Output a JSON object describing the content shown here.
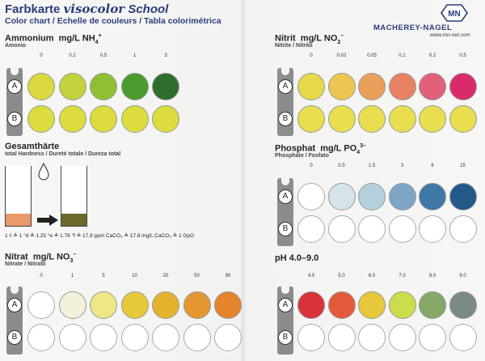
{
  "header": {
    "title_prefix": "Farbkarte",
    "title_brand": "visocolor",
    "title_suffix": "School",
    "subtitle": "Color chart / Echelle de couleurs / Tabla colorimétrica"
  },
  "logo": {
    "mark": "MN",
    "name": "MACHEREY-NAGEL",
    "url": "www.mn-net.com"
  },
  "slot_labels": {
    "a": "A",
    "b": "B"
  },
  "ammonium": {
    "title": "Ammonium",
    "unit": "mg/L NH",
    "unit_sub": "4",
    "unit_sup": "+",
    "subtitle": "Amonio",
    "values": [
      "0",
      "0.2",
      "0.5",
      "1",
      "3"
    ],
    "colors": [
      "#d9d83e",
      "#c2d23c",
      "#8fbf33",
      "#4a9b2e",
      "#2f6d2c"
    ],
    "ref_color": "#dcdc3e"
  },
  "nitrit": {
    "title": "Nitrit",
    "unit": "mg/L NO",
    "unit_sub": "2",
    "unit_sup": "–",
    "subtitle": "Nitrite / Nitrito",
    "values": [
      "0",
      "0.02",
      "0.05",
      "0.1",
      "0.2",
      "0.5"
    ],
    "colors": [
      "#e5d84a",
      "#ecc650",
      "#eaa05a",
      "#e88262",
      "#e2607a",
      "#d92a6c"
    ],
    "ref_color": "#e8de50"
  },
  "hardness": {
    "title": "Gesamthärte",
    "subtitle": "total Hardness / Dureté totale / Dureza total",
    "tube_start_color": "#e89a6a",
    "tube_end_color": "#6b6a2a",
    "equivalence": "1 ◊ ≙ 1 °d ≙ 1.25 °e ≙ 1.78 °f ≙ 17.8 ppm CaCO₃ ≙ 17.8 mg/L CaCO₃ ≙ 1 GpG"
  },
  "phosphat": {
    "title": "Phosphat",
    "unit": "mg/L PO",
    "unit_sub": "4",
    "unit_sup": "3–",
    "subtitle": "Phosphate / Fosfato",
    "values": [
      "0",
      "0.5",
      "1.5",
      "3",
      "6",
      "15"
    ],
    "colors": [
      "#ffffff",
      "#d6e4ea",
      "#b5d0dd",
      "#7da5c6",
      "#3f77a6",
      "#245889"
    ]
  },
  "nitrat": {
    "title": "Nitrat",
    "unit": "mg/L NO",
    "unit_sub": "3",
    "unit_sup": "–",
    "subtitle": "Nitrate / Nitrato",
    "values": [
      "0",
      "1",
      "5",
      "10",
      "20",
      "50",
      "90"
    ],
    "colors": [
      "#ffffff",
      "#f3f1dc",
      "#ede788",
      "#e6c83c",
      "#e4b22c",
      "#e49630",
      "#e4852c"
    ]
  },
  "ph": {
    "title": "pH 4.0–9.0",
    "values": [
      "4.0",
      "5.0",
      "6.0",
      "7.0",
      "8.0",
      "9.0"
    ],
    "colors": [
      "#d8323a",
      "#e35a3a",
      "#e6c83a",
      "#cddc4a",
      "#86a866",
      "#7a8a88"
    ]
  }
}
